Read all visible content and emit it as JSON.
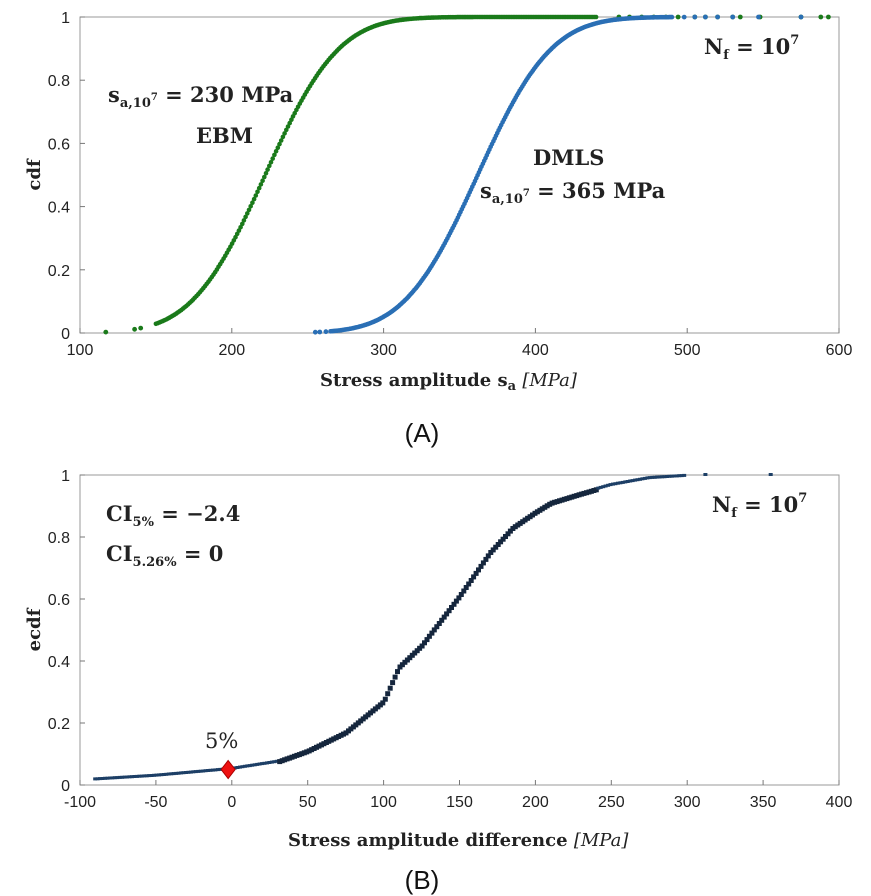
{
  "chart_data": [
    {
      "panel": "(A)",
      "type": "scatter",
      "ylabel": "cdf",
      "xlabel": "Stress amplitude",
      "xlabel_symbol": "s",
      "xlabel_sub": "a",
      "xlabel_unit": "[MPa]",
      "xlim": [
        100,
        600
      ],
      "ylim": [
        0,
        1
      ],
      "xticks": [
        100,
        200,
        300,
        400,
        500,
        600
      ],
      "yticks": [
        0,
        0.2,
        0.4,
        0.6,
        0.8,
        1
      ],
      "grid": false,
      "annotations": {
        "nf": {
          "base": "N",
          "sub": "f",
          "eq": " = 10",
          "sup": "7"
        },
        "ebm_sa": {
          "base": "s",
          "sub": "a,10",
          "subsup": "7",
          "eq": " = 230 MPa"
        },
        "ebm_label": "EBM",
        "dmls_label": "DMLS",
        "dmls_sa": {
          "base": "s",
          "sub": "a,10",
          "subsup": "7",
          "eq": " = 365 MPa"
        }
      },
      "series": [
        {
          "name": "EBM",
          "color": "#1a7a1a",
          "dist": "normal",
          "mean": 222,
          "std": 38,
          "x_range": [
            150,
            440
          ],
          "outliers": [
            117,
            136,
            140,
            455,
            462,
            470,
            478,
            486,
            494,
            505,
            512,
            520,
            530,
            535,
            548,
            575,
            588,
            593
          ]
        },
        {
          "name": "DMLS",
          "color": "#2a6fb5",
          "dist": "normal",
          "mean": 362,
          "std": 38,
          "x_range": [
            265,
            490
          ],
          "outliers": [
            255,
            258,
            262,
            498,
            505,
            512,
            520,
            530,
            547,
            575
          ]
        }
      ]
    },
    {
      "panel": "(B)",
      "type": "scatter",
      "ylabel": "ecdf",
      "xlabel": "Stress amplitude difference",
      "xlabel_unit": "[MPa]",
      "xlim": [
        -100,
        400
      ],
      "ylim": [
        0,
        1
      ],
      "xticks": [
        -100,
        -50,
        0,
        50,
        100,
        150,
        200,
        250,
        300,
        350,
        400
      ],
      "yticks": [
        0,
        0.2,
        0.4,
        0.6,
        0.8,
        1
      ],
      "grid": false,
      "annotations": {
        "nf": {
          "base": "N",
          "sub": "f",
          "eq": " = 10",
          "sup": "7"
        },
        "ci5": {
          "base": "CI",
          "sub": "5%",
          "eq": " = −2.4"
        },
        "ci526": {
          "base": "CI",
          "sub": "5.26%",
          "eq": " = 0"
        },
        "marker_label": "5%"
      },
      "series": [
        {
          "name": "ecdf",
          "color": "#1d3f66",
          "knots": [
            [
              -90,
              0.018
            ],
            [
              -50,
              0.03
            ],
            [
              0,
              0.052
            ],
            [
              30,
              0.075
            ],
            [
              50,
              0.11
            ],
            [
              75,
              0.17
            ],
            [
              100,
              0.27
            ],
            [
              110,
              0.38
            ],
            [
              125,
              0.45
            ],
            [
              150,
              0.61
            ],
            [
              170,
              0.75
            ],
            [
              185,
              0.83
            ],
            [
              200,
              0.88
            ],
            [
              210,
              0.91
            ],
            [
              230,
              0.94
            ],
            [
              250,
              0.968
            ],
            [
              275,
              0.99
            ],
            [
              298,
              0.997
            ]
          ],
          "outliers": [
            [
              312,
              1.0
            ],
            [
              355,
              1.0
            ]
          ]
        }
      ],
      "marker": {
        "x": -2.4,
        "y": 0.05,
        "color": "#ee1111"
      }
    }
  ],
  "captions": [
    "(A)",
    "(B)"
  ]
}
